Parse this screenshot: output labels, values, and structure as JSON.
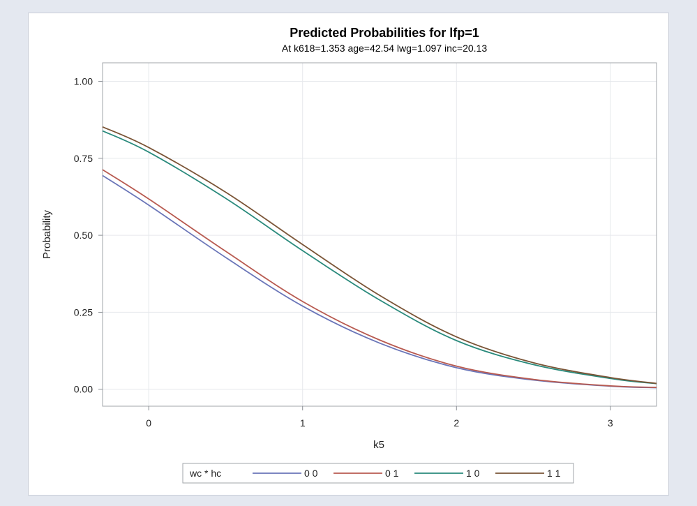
{
  "chart_data": {
    "type": "line",
    "title": "Predicted Probabilities for lfp=1",
    "subtitle": "At k618=1.353 age=42.54 lwg=1.097 inc=20.13",
    "xlabel": "k5",
    "ylabel": "Probability",
    "xlim": [
      -0.3,
      3.3
    ],
    "ylim": [
      -0.055,
      1.06
    ],
    "xticks": [
      0,
      1,
      2,
      3
    ],
    "yticks": [
      0.0,
      0.25,
      0.5,
      0.75,
      1.0
    ],
    "xtick_labels": [
      "0",
      "1",
      "2",
      "3"
    ],
    "ytick_labels": [
      "0.00",
      "0.25",
      "0.50",
      "0.75",
      "1.00"
    ],
    "grid": true,
    "legend": {
      "placement": "bottom",
      "title": "wc * hc"
    },
    "x": [
      -0.3,
      0,
      0.5,
      1,
      1.5,
      2,
      2.5,
      3,
      3.3
    ],
    "series": [
      {
        "name": "0 0",
        "color": "#6a75b8",
        "values": [
          0.694,
          0.598,
          0.428,
          0.27,
          0.15,
          0.07,
          0.03,
          0.01,
          0.005
        ]
      },
      {
        "name": "0 1",
        "color": "#b85a50",
        "values": [
          0.713,
          0.618,
          0.448,
          0.285,
          0.16,
          0.075,
          0.032,
          0.011,
          0.006
        ]
      },
      {
        "name": "1 0",
        "color": "#2a8a7c",
        "values": [
          0.839,
          0.77,
          0.62,
          0.45,
          0.29,
          0.158,
          0.08,
          0.035,
          0.018
        ]
      },
      {
        "name": "1 1",
        "color": "#7a5436",
        "values": [
          0.852,
          0.785,
          0.64,
          0.47,
          0.305,
          0.17,
          0.086,
          0.038,
          0.019
        ]
      }
    ]
  }
}
